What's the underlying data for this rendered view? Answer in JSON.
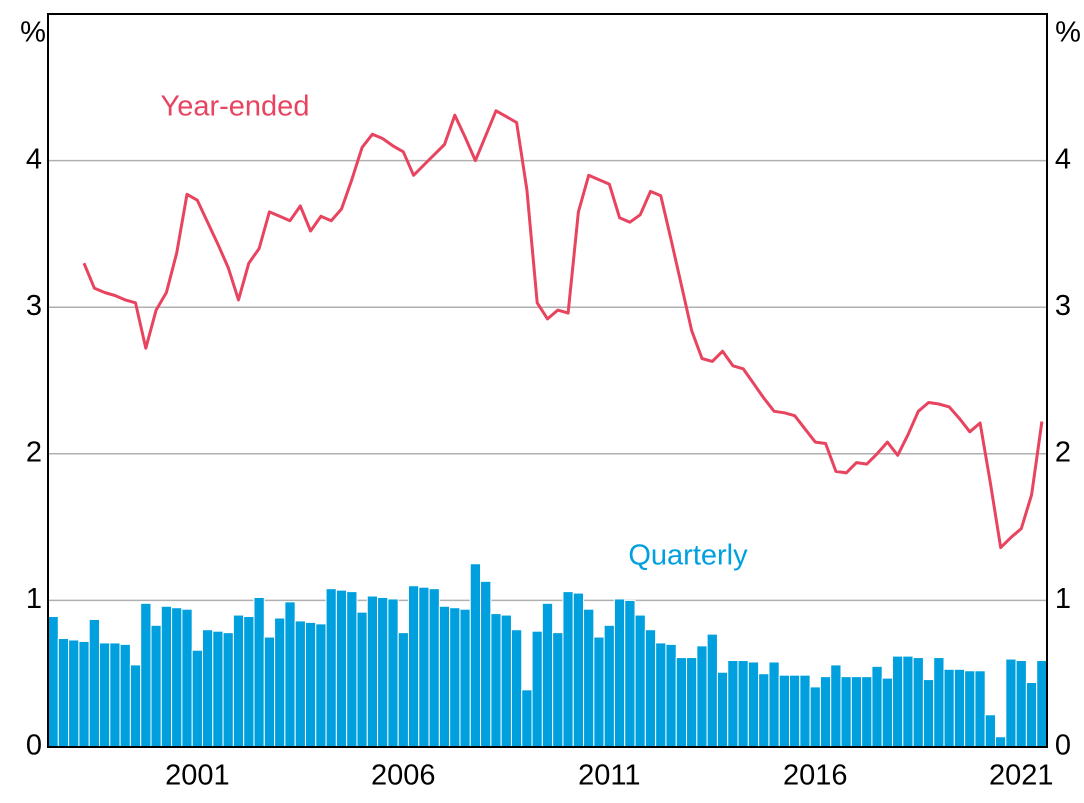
{
  "chart_data": {
    "type": "bar_line",
    "y_unit": "%",
    "categories": [
      null,
      null,
      null,
      null,
      null,
      null,
      null,
      null,
      null,
      null,
      null,
      null,
      null,
      null,
      "2001",
      null,
      null,
      null,
      null,
      null,
      null,
      null,
      null,
      null,
      null,
      null,
      null,
      null,
      null,
      null,
      null,
      null,
      null,
      null,
      "2006",
      null,
      null,
      null,
      null,
      null,
      null,
      null,
      null,
      null,
      null,
      null,
      null,
      null,
      null,
      null,
      null,
      null,
      null,
      null,
      "2011",
      null,
      null,
      null,
      null,
      null,
      null,
      null,
      null,
      null,
      null,
      null,
      null,
      null,
      null,
      null,
      null,
      null,
      null,
      null,
      "2016",
      null,
      null,
      null,
      null,
      null,
      null,
      null,
      null,
      null,
      null,
      null,
      null,
      null,
      null,
      null,
      null,
      null,
      null,
      null,
      "2021",
      null,
      null
    ],
    "series": [
      {
        "name": "Quarterly",
        "kind": "bar",
        "color": "#00a0df",
        "values": [
          0.89,
          0.74,
          0.73,
          0.72,
          0.87,
          0.71,
          0.71,
          0.7,
          0.56,
          0.98,
          0.83,
          0.96,
          0.95,
          0.94,
          0.66,
          0.8,
          0.79,
          0.78,
          0.9,
          0.89,
          1.02,
          0.75,
          0.88,
          0.99,
          0.86,
          0.85,
          0.84,
          1.08,
          1.07,
          1.06,
          0.92,
          1.03,
          1.02,
          1.01,
          0.78,
          1.1,
          1.09,
          1.08,
          0.96,
          0.95,
          0.94,
          1.25,
          1.13,
          0.91,
          0.9,
          0.8,
          0.39,
          0.79,
          0.98,
          0.78,
          1.06,
          1.05,
          0.94,
          0.75,
          0.83,
          1.01,
          1.0,
          0.9,
          0.8,
          0.71,
          0.7,
          0.61,
          0.61,
          0.69,
          0.77,
          0.51,
          0.59,
          0.59,
          0.58,
          0.5,
          0.58,
          0.49,
          0.49,
          0.49,
          0.41,
          0.48,
          0.56,
          0.48,
          0.48,
          0.48,
          0.55,
          0.47,
          0.62,
          0.62,
          0.61,
          0.46,
          0.61,
          0.53,
          0.53,
          0.52,
          0.52,
          0.22,
          0.07,
          0.6,
          0.59,
          0.44,
          0.59
        ]
      },
      {
        "name": "Year-ended",
        "kind": "line",
        "color": "#e8435f",
        "axis": "y2",
        "values": [
          null,
          null,
          null,
          3.3,
          3.13,
          3.1,
          3.08,
          3.05,
          3.03,
          2.72,
          2.98,
          3.1,
          3.37,
          3.77,
          3.73,
          3.58,
          3.43,
          3.27,
          3.05,
          3.3,
          3.4,
          3.65,
          3.62,
          3.59,
          3.69,
          3.52,
          3.62,
          3.59,
          3.67,
          3.87,
          4.09,
          4.18,
          4.15,
          4.1,
          4.06,
          3.9,
          3.97,
          4.04,
          4.11,
          4.31,
          4.16,
          4.0,
          4.17,
          4.34,
          4.3,
          4.26,
          3.8,
          3.03,
          2.92,
          2.98,
          2.96,
          3.65,
          3.9,
          3.87,
          3.84,
          3.61,
          3.58,
          3.63,
          3.79,
          3.76,
          3.46,
          3.15,
          2.84,
          2.65,
          2.63,
          2.7,
          2.6,
          2.58,
          2.48,
          2.38,
          2.29,
          2.28,
          2.26,
          2.17,
          2.08,
          2.07,
          1.88,
          1.87,
          1.94,
          1.93,
          2.0,
          2.08,
          1.99,
          2.13,
          2.29,
          2.35,
          2.34,
          2.32,
          2.24,
          2.15,
          2.21,
          1.8,
          1.36,
          1.43,
          1.49,
          1.72,
          2.22
        ]
      }
    ],
    "ylim": [
      0,
      5
    ],
    "yticks": [
      0,
      1,
      2,
      3,
      4
    ],
    "y2lim": [
      0,
      5
    ],
    "y2ticks": [
      0,
      1,
      2,
      3,
      4
    ],
    "grid": true
  }
}
